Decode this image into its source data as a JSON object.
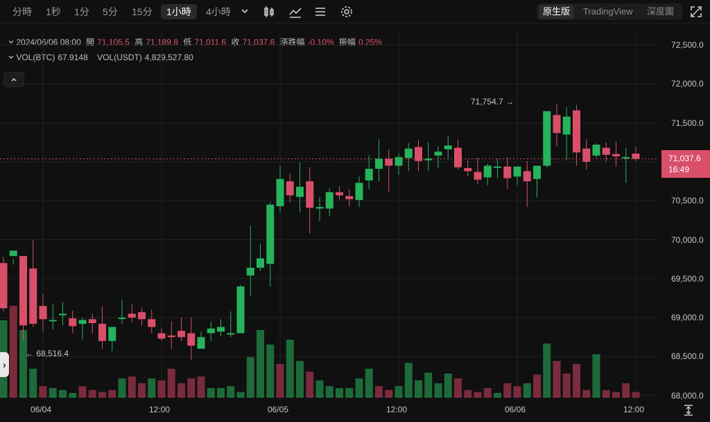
{
  "toolbar": {
    "timeframes": [
      "分時",
      "1秒",
      "1分",
      "5分",
      "15分",
      "1小時",
      "4小時"
    ],
    "active": "1小時",
    "view_modes": [
      "原生版",
      "TradingView",
      "深度圖"
    ],
    "active_view": "原生版"
  },
  "ohlc": {
    "date": "2024/06/06 08:00",
    "open_label": "開",
    "open": "71,105.5",
    "high_label": "高",
    "high": "71,189.8",
    "low_label": "低",
    "low": "71,011.6",
    "close_label": "收",
    "close": "71,037.6",
    "change_label": "漲跌幅",
    "change": "-0.10%",
    "amp_label": "振幅",
    "amp": "0.25%"
  },
  "volume": {
    "btc_label": "VOL(BTC)",
    "btc": "67.9148",
    "usdt_label": "VOL(USDT)",
    "usdt": "4,829,527.80"
  },
  "colors": {
    "up": "#26b35c",
    "down": "#d94f6a",
    "upVol": "#1d6b3a",
    "downVol": "#7a2b3d",
    "grid": "#222222"
  },
  "chart_data": {
    "type": "candlestick",
    "y_ticks": [
      "72,500.0",
      "72,000.0",
      "71,500.0",
      "71,000.0",
      "70,500.0",
      "70,000.0",
      "69,500.0",
      "69,000.0",
      "68,500.0",
      "68,000.0"
    ],
    "ylim": [
      67995,
      72565
    ],
    "x_ticks": [
      "06/04",
      "12:00",
      "06/05",
      "12:00",
      "06/06",
      "12:00"
    ],
    "last_price": "71,037.6",
    "countdown": "16:49",
    "high_marker": "71,754.7",
    "low_marker": "68,516.4",
    "candles": [
      [
        69700,
        69780,
        69120,
        69080
      ],
      [
        69790,
        69760,
        69860,
        69680
      ],
      [
        69790,
        69550,
        68900,
        68700
      ],
      [
        69630,
        70000,
        68920,
        68880
      ],
      [
        69150,
        69300,
        68980,
        68820
      ],
      [
        68960,
        69180,
        68970,
        68850
      ],
      [
        69030,
        69200,
        69050,
        68900
      ],
      [
        68990,
        69090,
        68890,
        68800
      ],
      [
        68920,
        69000,
        68970,
        68720
      ],
      [
        68980,
        69050,
        68930,
        68800
      ],
      [
        68920,
        69150,
        68700,
        68600
      ],
      [
        68700,
        68880,
        68880,
        68570
      ],
      [
        69000,
        69230,
        69000,
        68920
      ],
      [
        69050,
        69170,
        69000,
        68940
      ],
      [
        69070,
        69130,
        68980,
        68900
      ],
      [
        68980,
        69100,
        68880,
        68800
      ],
      [
        68800,
        68870,
        68730,
        68700
      ],
      [
        68770,
        68950,
        68750,
        68600
      ],
      [
        68830,
        69000,
        68750,
        68700
      ],
      [
        68800,
        69000,
        68640,
        68460
      ],
      [
        68600,
        68820,
        68750,
        68600
      ],
      [
        68800,
        68950,
        68860,
        68700
      ],
      [
        68820,
        68980,
        68880,
        68760
      ],
      [
        68790,
        69080,
        68800,
        68750
      ],
      [
        68800,
        69420,
        69400,
        68800
      ],
      [
        69540,
        70180,
        69640,
        69280
      ],
      [
        69640,
        69950,
        69760,
        69600
      ],
      [
        69690,
        70480,
        70450,
        69400
      ],
      [
        70430,
        70950,
        70780,
        70350
      ],
      [
        70750,
        70850,
        70570,
        70480
      ],
      [
        70550,
        70990,
        70680,
        70350
      ],
      [
        70750,
        70930,
        70410,
        70080
      ],
      [
        70400,
        70550,
        70420,
        70240
      ],
      [
        70400,
        70660,
        70610,
        70300
      ],
      [
        70610,
        70690,
        70570,
        70520
      ],
      [
        70560,
        70650,
        70520,
        70430
      ],
      [
        70510,
        70810,
        70730,
        70420
      ],
      [
        70760,
        71080,
        70910,
        70650
      ],
      [
        70910,
        71290,
        71040,
        70750
      ],
      [
        71040,
        71160,
        70950,
        70620
      ],
      [
        70950,
        71110,
        71060,
        70830
      ],
      [
        71050,
        71240,
        71170,
        70880
      ],
      [
        71190,
        71280,
        71010,
        70880
      ],
      [
        71020,
        71250,
        71040,
        70880
      ],
      [
        71080,
        71200,
        71130,
        70920
      ],
      [
        71160,
        71340,
        71210,
        71030
      ],
      [
        71180,
        71280,
        70930,
        70900
      ],
      [
        70920,
        71020,
        70880,
        70820
      ],
      [
        70870,
        71050,
        70770,
        70710
      ],
      [
        70800,
        70980,
        70950,
        70700
      ],
      [
        70940,
        71040,
        70940,
        70790
      ],
      [
        70940,
        71060,
        70790,
        70650
      ],
      [
        70810,
        70940,
        70940,
        70700
      ],
      [
        70880,
        71010,
        70750,
        70420
      ],
      [
        70780,
        70950,
        70950,
        70540
      ],
      [
        70950,
        71530,
        71650,
        70930
      ],
      [
        71600,
        71750,
        71370,
        71200
      ],
      [
        71350,
        71700,
        71580,
        71020
      ],
      [
        71660,
        71730,
        71120,
        70950
      ],
      [
        71170,
        71290,
        71000,
        70900
      ],
      [
        71080,
        71240,
        71220,
        71050
      ],
      [
        71180,
        71250,
        71090,
        71000
      ],
      [
        71100,
        71260,
        71070,
        70940
      ],
      [
        71060,
        71180,
        71060,
        70730
      ],
      [
        71105.5,
        71189.8,
        71037.6,
        71011.6
      ]
    ],
    "volumes": [
      [
        0.8,
        0
      ],
      [
        0.95,
        1
      ],
      [
        0.7,
        0
      ],
      [
        0.3,
        0
      ],
      [
        0.12,
        1
      ],
      [
        0.1,
        0
      ],
      [
        0.08,
        0
      ],
      [
        0.05,
        0
      ],
      [
        0.12,
        1
      ],
      [
        0.08,
        1
      ],
      [
        0.06,
        1
      ],
      [
        0.08,
        1
      ],
      [
        0.2,
        0
      ],
      [
        0.22,
        1
      ],
      [
        0.15,
        1
      ],
      [
        0.2,
        0
      ],
      [
        0.18,
        1
      ],
      [
        0.3,
        1
      ],
      [
        0.15,
        1
      ],
      [
        0.2,
        1
      ],
      [
        0.22,
        1
      ],
      [
        0.1,
        0
      ],
      [
        0.1,
        0
      ],
      [
        0.12,
        0
      ],
      [
        0.06,
        0
      ],
      [
        0.42,
        0
      ],
      [
        0.7,
        0
      ],
      [
        0.55,
        0
      ],
      [
        0.35,
        1
      ],
      [
        0.6,
        0
      ],
      [
        0.38,
        0
      ],
      [
        0.27,
        1
      ],
      [
        0.18,
        0
      ],
      [
        0.12,
        0
      ],
      [
        0.1,
        0
      ],
      [
        0.1,
        0
      ],
      [
        0.2,
        0
      ],
      [
        0.3,
        0
      ],
      [
        0.12,
        1
      ],
      [
        0.08,
        1
      ],
      [
        0.12,
        0
      ],
      [
        0.36,
        0
      ],
      [
        0.18,
        0
      ],
      [
        0.26,
        0
      ],
      [
        0.15,
        0
      ],
      [
        0.25,
        0
      ],
      [
        0.2,
        1
      ],
      [
        0.08,
        1
      ],
      [
        0.06,
        1
      ],
      [
        0.1,
        1
      ],
      [
        0.05,
        0
      ],
      [
        0.15,
        1
      ],
      [
        0.12,
        1
      ],
      [
        0.15,
        0
      ],
      [
        0.24,
        1
      ],
      [
        0.56,
        0
      ],
      [
        0.38,
        1
      ],
      [
        0.25,
        1
      ],
      [
        0.35,
        1
      ],
      [
        0.08,
        1
      ],
      [
        0.45,
        0
      ],
      [
        0.08,
        1
      ],
      [
        0.06,
        1
      ],
      [
        0.15,
        1
      ],
      [
        0.06,
        1
      ]
    ]
  }
}
